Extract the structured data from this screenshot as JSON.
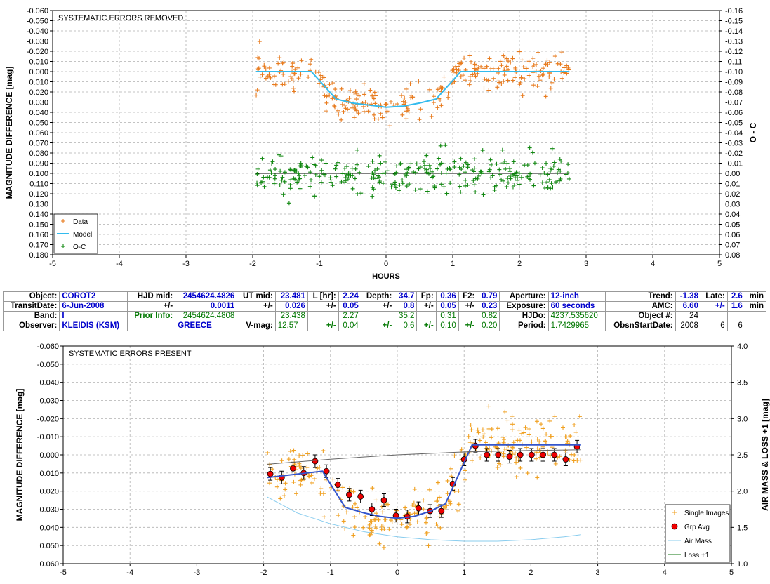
{
  "chart_data": [
    {
      "type": "scatter",
      "title": "SYSTEMATIC ERRORS REMOVED",
      "xlabel": "HOURS",
      "ylabel": "MAGNITUDE DIFFERENCE [mag]",
      "y2label": "O - C",
      "xlim": [
        -5,
        5
      ],
      "ylim": [
        0.18,
        -0.06
      ],
      "y2lim": [
        0.08,
        -0.16
      ],
      "xticks": [
        "-5",
        "-4",
        "-3",
        "-2",
        "-1",
        "0",
        "1",
        "2",
        "3",
        "4",
        "5"
      ],
      "yticks": [
        "-0.060",
        "-0.050",
        "-0.040",
        "-0.030",
        "-0.020",
        "-0.010",
        "0.000",
        "0.010",
        "0.020",
        "0.030",
        "0.040",
        "0.050",
        "0.060",
        "0.070",
        "0.080",
        "0.090",
        "0.100",
        "0.110",
        "0.120",
        "0.130",
        "0.140",
        "0.150",
        "0.160",
        "0.170",
        "0.180"
      ],
      "y2ticks": [
        "-0.16",
        "-0.15",
        "-0.14",
        "-0.13",
        "-0.12",
        "-0.11",
        "-0.10",
        "-0.09",
        "-0.08",
        "-0.07",
        "-0.06",
        "-0.05",
        "-0.04",
        "-0.03",
        "-0.02",
        "-0.01",
        "0.00",
        "0.01",
        "0.02",
        "0.03",
        "0.04",
        "0.05",
        "0.06",
        "0.07",
        "0.08"
      ],
      "grid": true,
      "legend": {
        "position": "bottom-left",
        "entries": [
          "Data",
          "Model",
          "O-C"
        ]
      },
      "series": [
        {
          "name": "Data",
          "kind": "points",
          "x_range": [
            -1.95,
            2.75
          ],
          "n_points": 300,
          "color": "#e87b1e"
        },
        {
          "name": "Model",
          "kind": "line",
          "x": [
            -1.95,
            -1.12,
            -0.75,
            -0.5,
            -0.25,
            0,
            0.25,
            0.5,
            0.75,
            1.12,
            2.75
          ],
          "y": [
            0.0,
            0.0,
            0.027,
            0.031,
            0.033,
            0.035,
            0.034,
            0.031,
            0.027,
            0.0,
            0.0
          ],
          "color": "#33bbee"
        },
        {
          "name": "O-C",
          "kind": "points",
          "offset": 0.1,
          "x_range": [
            -1.95,
            2.75
          ],
          "n_points": 300,
          "color": "#118811"
        }
      ],
      "zero_line": 0.1
    },
    {
      "type": "scatter",
      "title": "SYSTEMATIC ERRORS PRESENT",
      "ylabel": "MAGNITUDE DIFFERENCE [mag]",
      "y2label": "AIR MASS & LOSS +1 [mag]",
      "xlim": [
        -5,
        5
      ],
      "ylim": [
        0.06,
        -0.06
      ],
      "y2lim": [
        1.0,
        4.0
      ],
      "xticks": [
        "-5",
        "-4",
        "-3",
        "-2",
        "-1",
        "0",
        "1",
        "2",
        "3",
        "4",
        "5"
      ],
      "yticks": [
        "-0.060",
        "-0.050",
        "-0.040",
        "-0.030",
        "-0.020",
        "-0.010",
        "0.000",
        "0.010",
        "0.020",
        "0.030",
        "0.040",
        "0.050",
        "0.060"
      ],
      "y2ticks": [
        "1.0",
        "1.5",
        "2.0",
        "2.5",
        "3.0",
        "3.5",
        "4.0"
      ],
      "grid": true,
      "legend": {
        "position": "bottom-right",
        "entries": [
          "Single Images",
          "Grp Avg",
          "Air Mass",
          "Loss +1"
        ]
      },
      "series": [
        {
          "name": "Single Images",
          "kind": "points",
          "x_range": [
            -1.95,
            2.75
          ],
          "n_points": 300,
          "color": "#f0a020"
        },
        {
          "name": "Grp Avg",
          "kind": "errorbar",
          "x": [
            -1.9,
            -1.73,
            -1.56,
            -1.4,
            -1.23,
            -1.06,
            -0.89,
            -0.72,
            -0.55,
            -0.38,
            -0.2,
            -0.02,
            0.15,
            0.32,
            0.49,
            0.66,
            0.83,
            1.0,
            1.17,
            1.34,
            1.51,
            1.68,
            1.84,
            2.01,
            2.18,
            2.35,
            2.52,
            2.69
          ],
          "y": [
            0.0105,
            0.0125,
            0.0075,
            0.01,
            0.0035,
            0.009,
            0.0165,
            0.022,
            0.023,
            0.03,
            0.025,
            0.0335,
            0.034,
            0.0295,
            0.031,
            0.031,
            0.016,
            0.0025,
            -0.005,
            0.0,
            0.0,
            0.001,
            0.0,
            0.0,
            0.0,
            0.0,
            0.0025,
            -0.0045
          ],
          "err": 0.0035,
          "color": "#ee0000"
        },
        {
          "name": "Model",
          "kind": "line",
          "x": [
            -1.95,
            -1.12,
            -0.78,
            -0.5,
            -0.25,
            0,
            0.25,
            0.5,
            0.72,
            1.12,
            2.75
          ],
          "y": [
            0.0125,
            0.009,
            0.029,
            0.032,
            0.034,
            0.035,
            0.034,
            0.031,
            0.027,
            -0.0055,
            -0.0055
          ],
          "color": "#3355cc"
        },
        {
          "name": "Air Mass",
          "kind": "line",
          "x": [
            -1.95,
            -1.5,
            -1.0,
            -0.5,
            0,
            0.5,
            1.0,
            1.5,
            2.0,
            2.5,
            2.75
          ],
          "y": [
            1.92,
            1.7,
            1.55,
            1.44,
            1.37,
            1.33,
            1.31,
            1.31,
            1.33,
            1.37,
            1.4
          ],
          "axis": "y2",
          "color": "#88ccee"
        },
        {
          "name": "Loss +1",
          "kind": "line",
          "x": [
            -1.95,
            -1.0,
            0,
            1.0,
            2.0,
            2.75
          ],
          "y": [
            2.37,
            2.44,
            2.5,
            2.54,
            2.56,
            2.57
          ],
          "axis": "y2",
          "color": "#666666"
        }
      ]
    }
  ],
  "info": {
    "rows": [
      [
        "Object:",
        "COROT2",
        "HJD mid:",
        "2454624.4826",
        "UT mid:",
        "23.481",
        "L [hr]:",
        "2.24",
        "Depth:",
        "34.7",
        "Fp:",
        "0.36",
        "F2:",
        "0.79",
        "Aperture:",
        "12-inch",
        "Trend:",
        "-1.38",
        "Late:",
        "2.6",
        "min"
      ],
      [
        "TransitDate:",
        "6-Jun-2008",
        "+/-",
        "0.0011",
        "+/-",
        "0.026",
        "+/-",
        "0.05",
        "+/-",
        "0.8",
        "+/-",
        "0.05",
        "+/-",
        "0.23",
        "Exposure:",
        "60 seconds",
        "AMC:",
        "6.60",
        "+/-",
        "1.6",
        "min"
      ],
      [
        "Band:",
        "I",
        "Prior Info:",
        "2454624.4808",
        "",
        "23.438",
        "",
        "2.27",
        "",
        "35.2",
        "",
        "0.31",
        "",
        "0.82",
        "HJDo:",
        "4237.535620",
        "Object #:",
        "24",
        "",
        "",
        ""
      ],
      [
        "Observer:",
        "KLEIDIS (KSM)",
        "",
        "GREECE",
        "V-mag:",
        "12.57",
        "+/-",
        "0.04",
        "+/-",
        "0.6",
        "+/-",
        "0.10",
        "+/-",
        "0.20",
        "Period:",
        "1.7429965",
        "ObsnStartDate:",
        "2008",
        "6",
        "6",
        ""
      ]
    ]
  }
}
